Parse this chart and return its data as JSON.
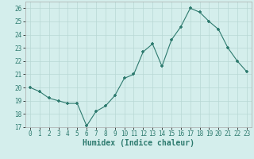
{
  "x": [
    0,
    1,
    2,
    3,
    4,
    5,
    6,
    7,
    8,
    9,
    10,
    11,
    12,
    13,
    14,
    15,
    16,
    17,
    18,
    19,
    20,
    21,
    22,
    23
  ],
  "y": [
    20.0,
    19.7,
    19.2,
    19.0,
    18.8,
    18.8,
    17.1,
    18.2,
    18.6,
    19.4,
    20.7,
    21.0,
    22.7,
    23.3,
    21.6,
    23.6,
    24.6,
    26.0,
    25.7,
    25.0,
    24.4,
    23.0,
    22.0,
    21.2
  ],
  "xlabel": "Humidex (Indice chaleur)",
  "xlim": [
    -0.5,
    23.5
  ],
  "ylim": [
    17,
    26.5
  ],
  "yticks": [
    17,
    18,
    19,
    20,
    21,
    22,
    23,
    24,
    25,
    26
  ],
  "xticks": [
    0,
    1,
    2,
    3,
    4,
    5,
    6,
    7,
    8,
    9,
    10,
    11,
    12,
    13,
    14,
    15,
    16,
    17,
    18,
    19,
    20,
    21,
    22,
    23
  ],
  "line_color": "#2d7a6e",
  "marker": "+",
  "bg_color": "#d4eeec",
  "grid_color": "#b8d8d5",
  "label_fontsize": 7,
  "tick_fontsize": 5.5
}
